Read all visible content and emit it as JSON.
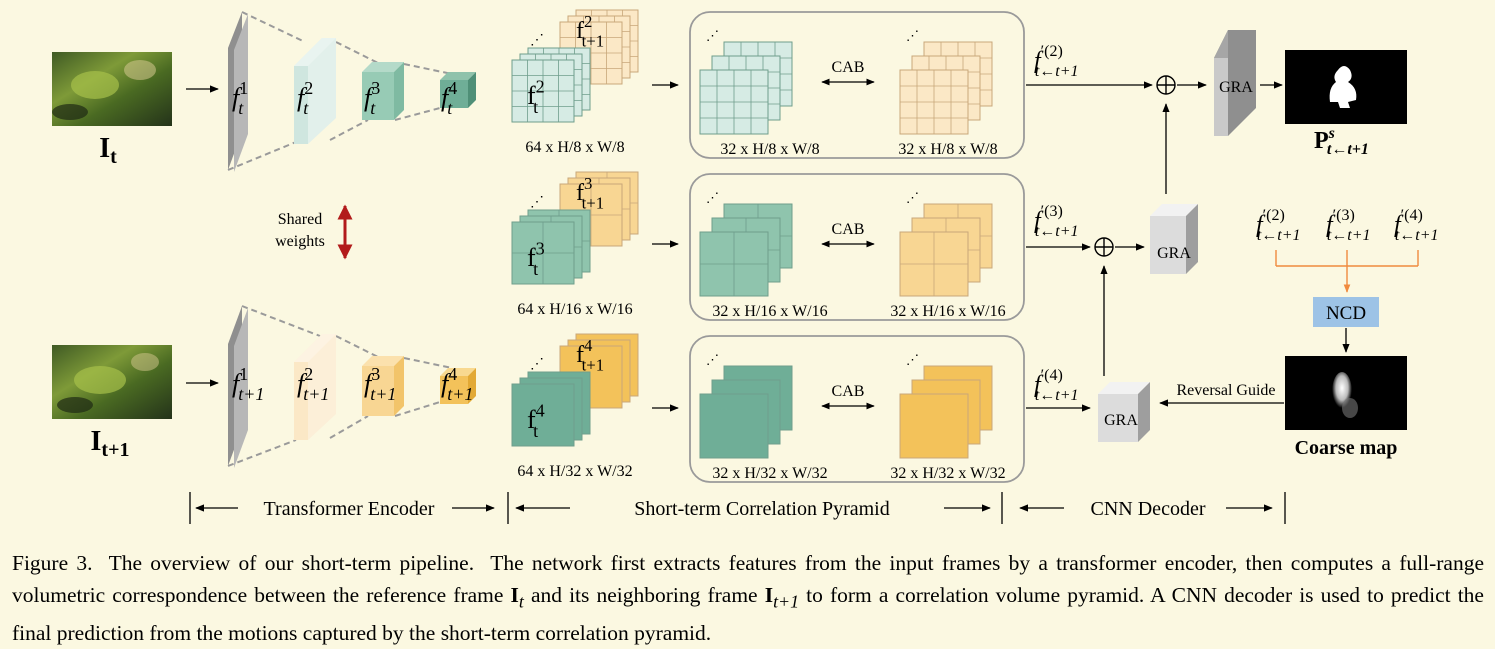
{
  "input_frames": {
    "reference_label": "I",
    "reference_sub": "t",
    "neighbor_label": "I",
    "neighbor_sub": "t+1"
  },
  "encoder": {
    "top_features": [
      {
        "base": "f",
        "sup": "1",
        "sub": "t"
      },
      {
        "base": "f",
        "sup": "2",
        "sub": "t"
      },
      {
        "base": "f",
        "sup": "3",
        "sub": "t"
      },
      {
        "base": "f",
        "sup": "4",
        "sub": "t"
      }
    ],
    "bottom_features": [
      {
        "base": "f",
        "sup": "1",
        "sub": "t+1"
      },
      {
        "base": "f",
        "sup": "2",
        "sub": "t+1"
      },
      {
        "base": "f",
        "sup": "3",
        "sub": "t+1"
      },
      {
        "base": "f",
        "sup": "4",
        "sub": "t+1"
      }
    ],
    "shared_weights_line1": "Shared",
    "shared_weights_line2": "weights"
  },
  "pyramid": {
    "levels": [
      {
        "front": {
          "base": "f",
          "sup": "2",
          "sub": "t"
        },
        "back": {
          "base": "f",
          "sup": "2",
          "sub": "t+1"
        },
        "dims": "64 x H/8 x W/8",
        "cab": "CAB",
        "left_dims": "32 x H/8 x W/8",
        "right_dims": "32 x H/8 x W/8",
        "flow": {
          "base": "f",
          "sup": "′(2)",
          "sub": "t←t+1"
        }
      },
      {
        "front": {
          "base": "f",
          "sup": "3",
          "sub": "t"
        },
        "back": {
          "base": "f",
          "sup": "3",
          "sub": "t+1"
        },
        "dims": "64 x H/16 x W/16",
        "cab": "CAB",
        "left_dims": "32 x H/16 x W/16",
        "right_dims": "32 x H/16 x W/16",
        "flow": {
          "base": "f",
          "sup": "′(3)",
          "sub": "t←t+1"
        }
      },
      {
        "front": {
          "base": "f",
          "sup": "4",
          "sub": "t"
        },
        "back": {
          "base": "f",
          "sup": "4",
          "sub": "t+1"
        },
        "dims": "64 x H/32 x W/32",
        "cab": "CAB",
        "left_dims": "32 x H/32 x W/32",
        "right_dims": "32 x H/32 x W/32",
        "flow": {
          "base": "f",
          "sup": "′(4)",
          "sub": "t←t+1"
        }
      }
    ]
  },
  "decoder": {
    "gra": "GRA",
    "oplus": "⊕",
    "ncd": "NCD",
    "ncd_inputs": [
      {
        "base": "f",
        "sup": "′(2)",
        "sub": "t←t+1"
      },
      {
        "base": "f",
        "sup": "′(3)",
        "sub": "t←t+1"
      },
      {
        "base": "f",
        "sup": "′(4)",
        "sub": "t←t+1"
      }
    ],
    "reversal_guide": "Reversal Guide",
    "coarse_map": "Coarse map",
    "output": {
      "base": "P",
      "sup": "s",
      "sub": "t←t+1"
    }
  },
  "stages": {
    "encoder": "Transformer Encoder",
    "pyramid": "Short-term Correlation Pyramid",
    "decoder": "CNN Decoder"
  },
  "caption": {
    "part1": "Figure 3.  The overview of our short-term pipeline.  The network first extracts features from the input frames by a transformer encoder, then computes a full-range volumetric correspondence between the reference frame ",
    "ref_sym": "I",
    "ref_sub": "t",
    "part2": " and its neighboring frame ",
    "nb_sym": "I",
    "nb_sub": "t+1",
    "part3": " to form a correlation volume pyramid. A CNN decoder is used to predict the final prediction from the motions captured by the short-term correlation pyramid."
  },
  "colors": {
    "background": "#fbf8e1",
    "gray_plane": "#b7b7b7",
    "teal_light": "#cfe6df",
    "teal_mid": "#97cbb5",
    "teal_dark": "#6fae97",
    "orange_light": "#fbe8c6",
    "orange_mid": "#f8d693",
    "orange_dark": "#f3c25a",
    "ncd_blue": "#9dc3e6",
    "shared_arrow": "#b21b1b",
    "ncd_bracket": "#f08a3e"
  }
}
